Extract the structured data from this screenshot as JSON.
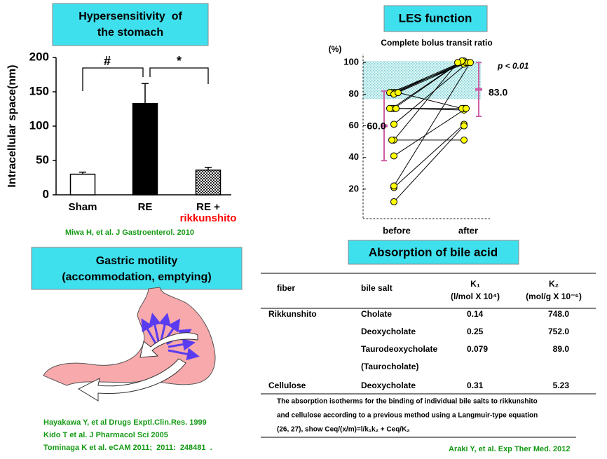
{
  "chart_data": [
    {
      "type": "bar",
      "title_lines": [
        "Hypersensitivity  of",
        "the stomach"
      ],
      "y_label": "Intracellular space(nm)",
      "categories": [
        "Sham",
        "RE",
        "RE +"
      ],
      "category_note": "rikkunshito",
      "category_note_color": "#ff0000",
      "values": [
        30,
        133,
        36
      ],
      "errors": [
        3,
        29,
        4
      ],
      "fills": [
        "white",
        "black",
        "dotted"
      ],
      "ylim": [
        0,
        200
      ],
      "yticks": [
        0,
        50,
        100,
        150,
        200
      ],
      "annotations": [
        {
          "text": "#",
          "between": [
            0,
            1
          ]
        },
        {
          "text": "*",
          "between": [
            1,
            2
          ]
        }
      ],
      "source": "Miwa H, et al. J Gastroenterol. 2010"
    },
    {
      "type": "slope",
      "title": "LES function",
      "subtitle": "Complete bolus transit ratio",
      "y_label": "(%)",
      "categories": [
        "before",
        "after"
      ],
      "color": "#ffff00",
      "series": [
        {
          "values": [
            81,
            100
          ]
        },
        {
          "values": [
            81,
            101
          ]
        },
        {
          "values": [
            81,
            100
          ]
        },
        {
          "values": [
            81,
            99
          ]
        },
        {
          "values": [
            80,
            100
          ]
        },
        {
          "values": [
            71,
            100
          ]
        },
        {
          "values": [
            71,
            101
          ]
        },
        {
          "values": [
            71,
            70
          ]
        },
        {
          "values": [
            71,
            71
          ]
        },
        {
          "values": [
            81,
            71
          ]
        },
        {
          "values": [
            61,
            100
          ]
        },
        {
          "values": [
            51,
            100
          ]
        },
        {
          "values": [
            51,
            51
          ]
        },
        {
          "values": [
            41,
            71
          ]
        },
        {
          "values": [
            21,
            61
          ]
        },
        {
          "values": [
            22,
            100
          ]
        },
        {
          "values": [
            12,
            60
          ]
        }
      ],
      "ylim": [
        0,
        105
      ],
      "yticks": [
        20,
        40,
        60,
        80,
        100
      ],
      "reference_range": [
        77,
        101
      ],
      "means": [
        60,
        83
      ],
      "mean_labels": [
        "60.0",
        "83.0"
      ],
      "sd": [
        22,
        17
      ],
      "mean_color": "#cc5fa8",
      "annotation": "p < 0.01"
    }
  ],
  "motility": {
    "title_lines": [
      "Gastric motility",
      "(accommodation, emptying)"
    ],
    "sources": [
      "Hayakawa Y, et al Drugs Exptl.Clin.Res. 1999",
      "Kido T et al. J Pharmacol Sci 2005",
      "Tominaga K et al. eCAM 2011;  2011:  248481  ."
    ]
  },
  "absorption": {
    "title": "Absorption of bile acid",
    "columns": [
      "fiber",
      "bile salt",
      "K₁",
      "K₂"
    ],
    "column_units": [
      null,
      null,
      "(l/mol X 10⁴)",
      "(mol/g X 10⁻⁶)"
    ],
    "rows": [
      [
        "Rikkunshito",
        "Cholate",
        "0.14",
        "748.0"
      ],
      [
        null,
        "Deoxycholate",
        "0.25",
        "752.0"
      ],
      [
        null,
        "Taurodeoxycholate",
        "0.079",
        "89.0"
      ],
      [
        null,
        "(Taurocholate)",
        null,
        null
      ],
      [
        "Cellulose",
        "Deoxycholate",
        "0.31",
        "5.23"
      ]
    ],
    "note_lines": [
      "The absorption isotherms for the binding of individual bile salts to rikkunshito",
      "and cellulose according to a previous method using a Langmuir-type equation",
      "(26, 27), show Ceq/(x/m)=l/k₁k₂ + Ceq/K₂"
    ],
    "source": "Araki Y, et al. Exp Ther Med. 2012"
  }
}
